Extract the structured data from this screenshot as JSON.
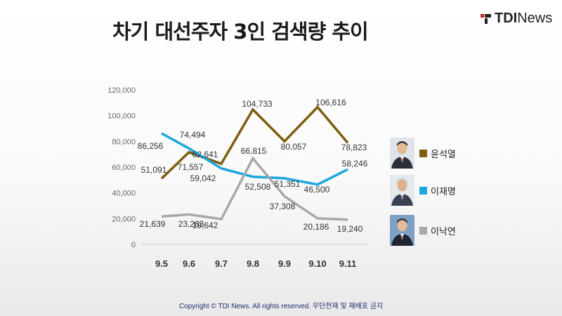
{
  "header": {
    "title": "차기 대선주자 3인 검색량 추이",
    "brand_bold": "TDI",
    "brand_light": "News"
  },
  "footer": {
    "copyright": "Copyright © TDI News. All rights reserved. 무단전재 및 재배포 금지"
  },
  "chart_data": {
    "type": "line",
    "x": [
      "9.5",
      "9.6",
      "9.7",
      "9.8",
      "9.9",
      "9.10",
      "9.11"
    ],
    "yticks": [
      "0",
      "20,000",
      "40,000",
      "60,000",
      "80,000",
      "100,000",
      "120,000"
    ],
    "ylim": [
      0,
      120000
    ],
    "grid": false,
    "legend": "right",
    "series": [
      {
        "name": "윤석열",
        "color": "#7d5f0f",
        "values": [
          51091,
          71557,
          62641,
          104733,
          80057,
          106616,
          78823
        ],
        "labels": [
          "51,091",
          "71,557",
          "62,641",
          "104,733",
          "80,057",
          "106,616",
          "78,823"
        ]
      },
      {
        "name": "이재명",
        "color": "#1aa7e0",
        "values": [
          86256,
          74494,
          59042,
          52508,
          51351,
          46500,
          58246
        ],
        "labels": [
          "86,256",
          "74,494",
          "59,042",
          "52,508",
          "51,351",
          "46,500",
          "58,246"
        ]
      },
      {
        "name": "이낙연",
        "color": "#a8a8a8",
        "values": [
          21639,
          23263,
          19642,
          66815,
          37308,
          20186,
          19240
        ],
        "labels": [
          "21,639",
          "23,263",
          "19,642",
          "66,815",
          "37,308",
          "20,186",
          "19,240"
        ]
      }
    ]
  }
}
